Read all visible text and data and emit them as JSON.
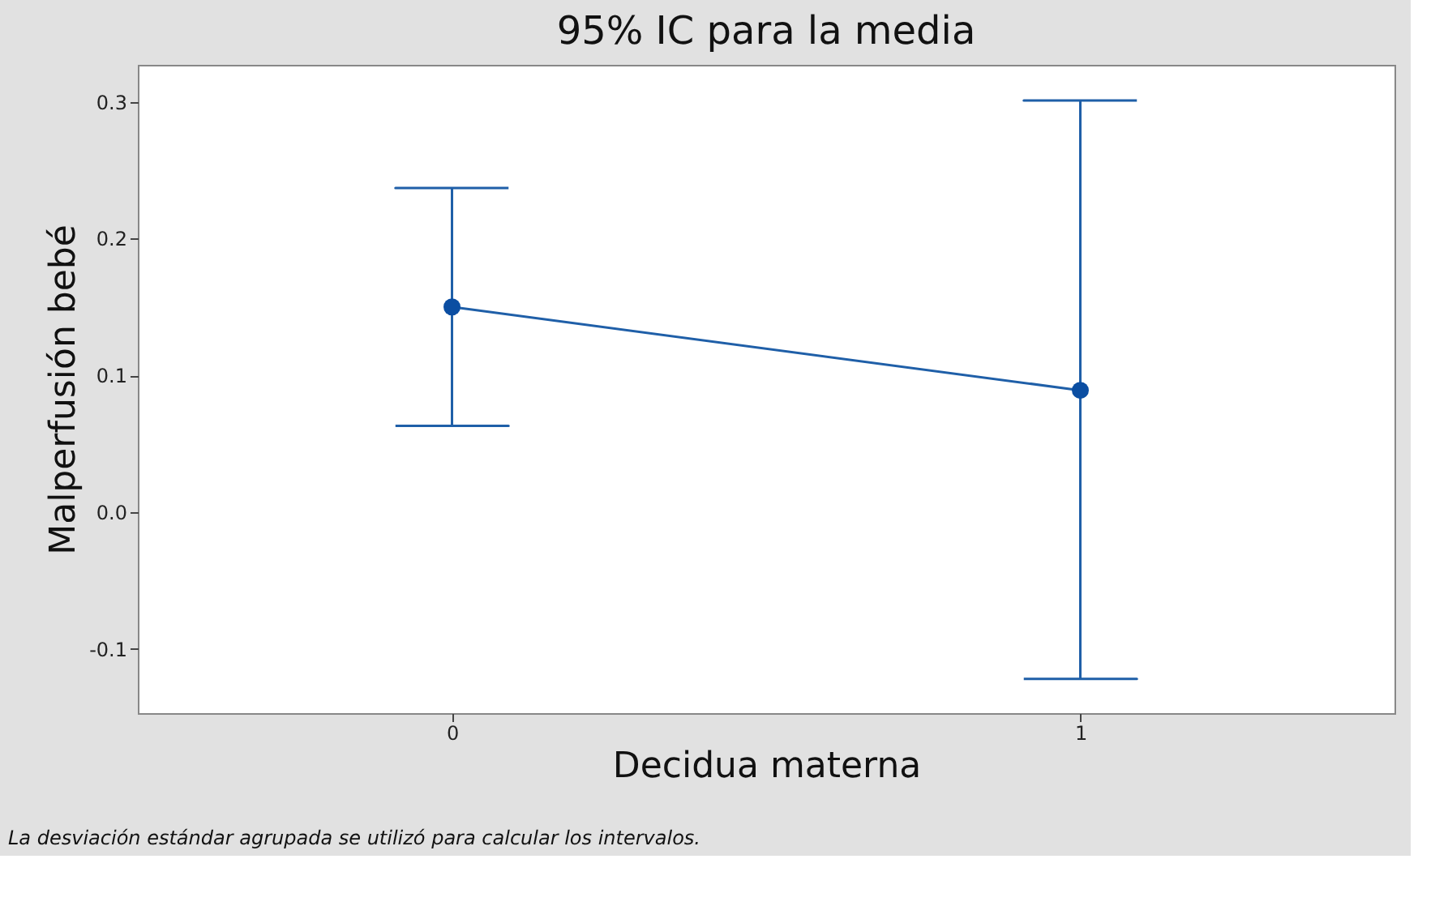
{
  "chart_data": {
    "type": "line",
    "title": "95% IC para la media",
    "xlabel": "Decidua materna",
    "ylabel": "Malperfusión bebé",
    "categories": [
      "0",
      "1"
    ],
    "color": "#1f5fa8",
    "values": [
      0.15,
      0.089
    ],
    "errors": [
      [
        0.063,
        0.237
      ],
      [
        -0.122,
        0.301
      ]
    ],
    "ylim": [
      -0.147,
      0.327
    ],
    "yticks": [
      {
        "value": -0.1,
        "label": "-0.1"
      },
      {
        "value": 0,
        "label": "0.0"
      },
      {
        "value": 0.1,
        "label": "0.1"
      },
      {
        "value": 0.2,
        "label": "0.2"
      },
      {
        "value": 0.3,
        "label": "0.3"
      }
    ],
    "marker": "circle",
    "line_style": "solid",
    "grid": false,
    "annotations": [
      "La desviación estándar agrupada se utilizó para calcular los intervalos."
    ]
  }
}
